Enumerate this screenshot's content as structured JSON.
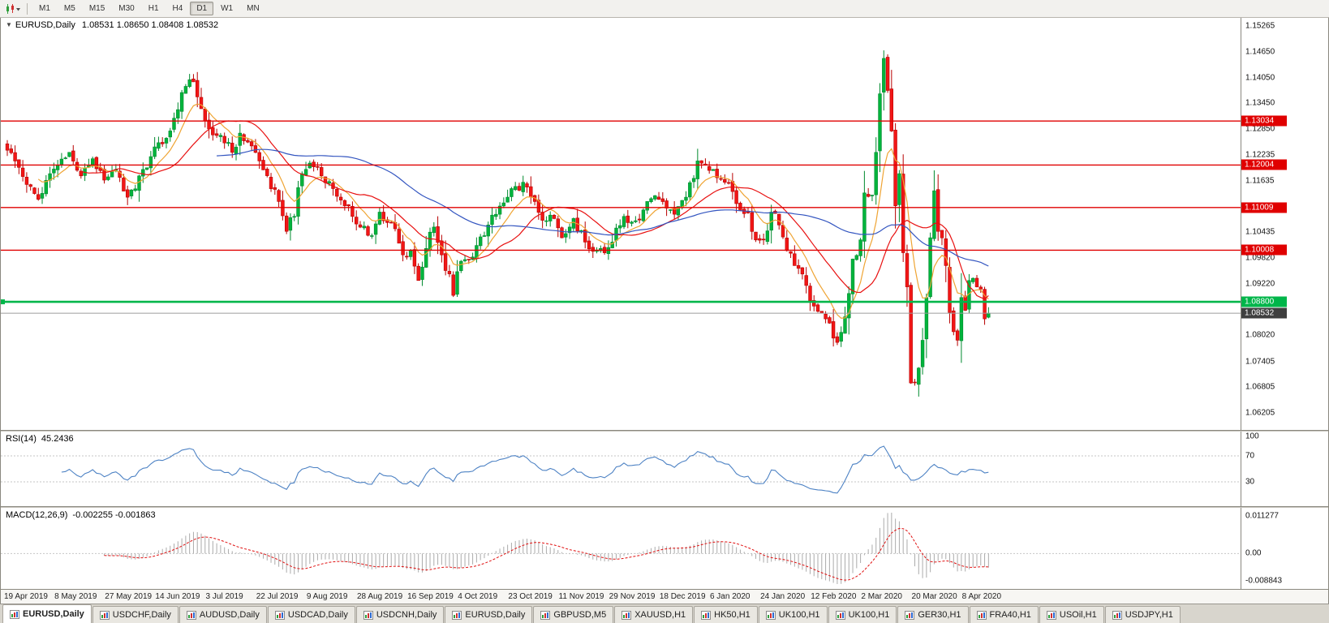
{
  "colors": {
    "up": "#00B43C",
    "up_border": "#008A2E",
    "down": "#F21616",
    "down_border": "#B80000",
    "ma_fast": "#EFA433",
    "ma_mid": "#E81010",
    "ma_slow": "#3355C0",
    "hline_red": "#E00000",
    "hline_green": "#00B64A",
    "rsi_line": "#4D82C4",
    "macd_hist": "#ABABAB",
    "macd_signal": "#E01010",
    "badge_current_bg": "#3F3F3F"
  },
  "toolbar": {
    "chart_type_icon": "candlestick-chart",
    "timeframes": [
      "M1",
      "M5",
      "M15",
      "M30",
      "H1",
      "H4",
      "D1",
      "W1",
      "MN"
    ],
    "active_timeframe": "D1"
  },
  "chart": {
    "collapse_icon": "▼",
    "symbol": "EURUSD,Daily",
    "ohlc": "1.08531 1.08650 1.08408 1.08532"
  },
  "price_axis": {
    "ticks": [
      "1.15265",
      "1.14650",
      "1.14050",
      "1.13450",
      "1.12850",
      "1.12235",
      "1.11635",
      "1.10435",
      "1.09820",
      "1.09220",
      "1.08020",
      "1.07405",
      "1.06805",
      "1.06205"
    ],
    "range": {
      "max": 1.1545,
      "min": 1.058
    }
  },
  "hlines": [
    {
      "value": 1.13034,
      "label": "1.13034",
      "type": "red"
    },
    {
      "value": 1.12004,
      "label": "1.12004",
      "type": "red"
    },
    {
      "value": 1.11009,
      "label": "1.11009",
      "type": "red"
    },
    {
      "value": 1.10008,
      "label": "1.10008",
      "type": "red"
    },
    {
      "value": 1.088,
      "label": "1.08800",
      "type": "green"
    },
    {
      "value": 1.08532,
      "label": "1.08532",
      "type": "current"
    }
  ],
  "rsi": {
    "name": "RSI(14)",
    "value": "45.2436",
    "axis": [
      "100",
      "70",
      "30"
    ],
    "levels": [
      70,
      30
    ]
  },
  "macd": {
    "name": "MACD(12,26,9)",
    "values": "-0.002255 -0.001863",
    "axis_top": "0.011277",
    "axis_zero": "0.00",
    "axis_bottom": "-0.008843"
  },
  "time_axis": [
    "19 Apr 2019",
    "8 May 2019",
    "27 May 2019",
    "14 Jun 2019",
    "3 Jul 2019",
    "22 Jul 2019",
    "9 Aug 2019",
    "28 Aug 2019",
    "16 Sep 2019",
    "4 Oct 2019",
    "23 Oct 2019",
    "11 Nov 2019",
    "29 Nov 2019",
    "18 Dec 2019",
    "6 Jan 2020",
    "24 Jan 2020",
    "12 Feb 2020",
    "2 Mar 2020",
    "20 Mar 2020",
    "8 Apr 2020"
  ],
  "tabs": {
    "items": [
      {
        "label": "EURUSD,Daily",
        "active": true
      },
      {
        "label": "USDCHF,Daily"
      },
      {
        "label": "AUDUSD,Daily"
      },
      {
        "label": "USDCAD,Daily"
      },
      {
        "label": "USDCNH,Daily"
      },
      {
        "label": "EURUSD,Daily"
      },
      {
        "label": "GBPUSD,M5"
      },
      {
        "label": "XAUUSD,H1"
      },
      {
        "label": "HK50,H1"
      },
      {
        "label": "UK100,H1"
      },
      {
        "label": "UK100,H1"
      },
      {
        "label": "GER30,H1"
      },
      {
        "label": "FRA40,H1"
      },
      {
        "label": "USOil,H1"
      },
      {
        "label": "USDJPY,H1"
      }
    ]
  },
  "chart_data": {
    "type": "candlestick",
    "symbol": "EURUSD",
    "timeframe": "Daily",
    "bars": 254,
    "bars_per_label": 13,
    "chart_shift": true,
    "seed": 1337,
    "anchor_format": [
      "bar_index",
      "close"
    ],
    "close_anchors": [
      [
        0,
        1.1235
      ],
      [
        3,
        1.1195
      ],
      [
        6,
        1.115
      ],
      [
        8,
        1.112
      ],
      [
        11,
        1.118
      ],
      [
        13,
        1.12
      ],
      [
        16,
        1.123
      ],
      [
        19,
        1.1175
      ],
      [
        22,
        1.1215
      ],
      [
        25,
        1.1165
      ],
      [
        28,
        1.119
      ],
      [
        31,
        1.1125
      ],
      [
        34,
        1.1175
      ],
      [
        37,
        1.122
      ],
      [
        40,
        1.125
      ],
      [
        43,
        1.131
      ],
      [
        45,
        1.137
      ],
      [
        47,
        1.14
      ],
      [
        49,
        1.136
      ],
      [
        52,
        1.1285
      ],
      [
        55,
        1.127
      ],
      [
        58,
        1.123
      ],
      [
        60,
        1.1275
      ],
      [
        63,
        1.1245
      ],
      [
        65,
        1.121
      ],
      [
        68,
        1.1145
      ],
      [
        70,
        1.1115
      ],
      [
        72,
        1.1045
      ],
      [
        74,
        1.108
      ],
      [
        76,
        1.118
      ],
      [
        78,
        1.1205
      ],
      [
        81,
        1.1175
      ],
      [
        84,
        1.1145
      ],
      [
        87,
        1.1105
      ],
      [
        89,
        1.108
      ],
      [
        91,
        1.1055
      ],
      [
        94,
        1.1035
      ],
      [
        96,
        1.109
      ],
      [
        99,
        1.1065
      ],
      [
        102,
        1.099
      ],
      [
        104,
        1.1
      ],
      [
        106,
        1.093
      ],
      [
        108,
        1.1005
      ],
      [
        110,
        1.1055
      ],
      [
        112,
        1.099
      ],
      [
        115,
        1.0895
      ],
      [
        117,
        1.0975
      ],
      [
        120,
        1.0985
      ],
      [
        123,
        1.1035
      ],
      [
        126,
        1.1085
      ],
      [
        129,
        1.1125
      ],
      [
        133,
        1.116
      ],
      [
        136,
        1.1115
      ],
      [
        139,
        1.107
      ],
      [
        141,
        1.1075
      ],
      [
        143,
        1.103
      ],
      [
        146,
        1.1075
      ],
      [
        149,
        1.102
      ],
      [
        152,
        1.1
      ],
      [
        154,
        1.0995
      ],
      [
        156,
        1.102
      ],
      [
        159,
        1.108
      ],
      [
        162,
        1.107
      ],
      [
        165,
        1.1115
      ],
      [
        168,
        1.112
      ],
      [
        172,
        1.1085
      ],
      [
        175,
        1.1125
      ],
      [
        178,
        1.121
      ],
      [
        180,
        1.12
      ],
      [
        182,
        1.119
      ],
      [
        185,
        1.116
      ],
      [
        188,
        1.111
      ],
      [
        191,
        1.109
      ],
      [
        193,
        1.1025
      ],
      [
        195,
        1.1025
      ],
      [
        197,
        1.109
      ],
      [
        199,
        1.106
      ],
      [
        201,
        1.1
      ],
      [
        203,
        1.0965
      ],
      [
        205,
        1.0945
      ],
      [
        208,
        1.087
      ],
      [
        211,
        1.084
      ],
      [
        213,
        1.0795
      ],
      [
        214,
        1.0785
      ],
      [
        216,
        1.0845
      ],
      [
        218,
        1.098
      ],
      [
        220,
        1.1025
      ],
      [
        221,
        1.1135
      ],
      [
        223,
        1.113
      ],
      [
        224,
        1.123
      ],
      [
        226,
        1.145
      ],
      [
        227,
        1.1375
      ],
      [
        228,
        1.128
      ],
      [
        229,
        1.1105
      ],
      [
        230,
        1.118
      ],
      [
        231,
        1.0995
      ],
      [
        232,
        1.0915
      ],
      [
        233,
        1.069
      ],
      [
        234,
        1.069
      ],
      [
        235,
        1.0725
      ],
      [
        236,
        1.079
      ],
      [
        237,
        1.089
      ],
      [
        238,
        1.103
      ],
      [
        239,
        1.114
      ],
      [
        240,
        1.1045
      ],
      [
        241,
        1.103
      ],
      [
        242,
        1.0965
      ],
      [
        243,
        1.0855
      ],
      [
        244,
        1.081
      ],
      [
        245,
        1.079
      ],
      [
        246,
        1.089
      ],
      [
        247,
        1.086
      ],
      [
        248,
        1.093
      ],
      [
        249,
        1.0935
      ],
      [
        250,
        1.0915
      ],
      [
        251,
        1.091
      ],
      [
        252,
        1.084
      ],
      [
        253,
        1.08532
      ]
    ],
    "moving_averages": [
      {
        "kind": "ema",
        "period": 9,
        "color_key": "ma_fast"
      },
      {
        "kind": "sma",
        "period": 20,
        "color_key": "ma_mid"
      },
      {
        "kind": "sma",
        "period": 55,
        "color_key": "ma_slow"
      }
    ],
    "indicators": [
      {
        "name": "RSI",
        "params": [
          14
        ],
        "current": 45.2436
      },
      {
        "name": "MACD",
        "params": [
          12,
          26,
          9
        ],
        "current": [
          -0.002255,
          -0.001863
        ],
        "scale_max": 0.011277,
        "scale_min": -0.008843
      }
    ]
  }
}
